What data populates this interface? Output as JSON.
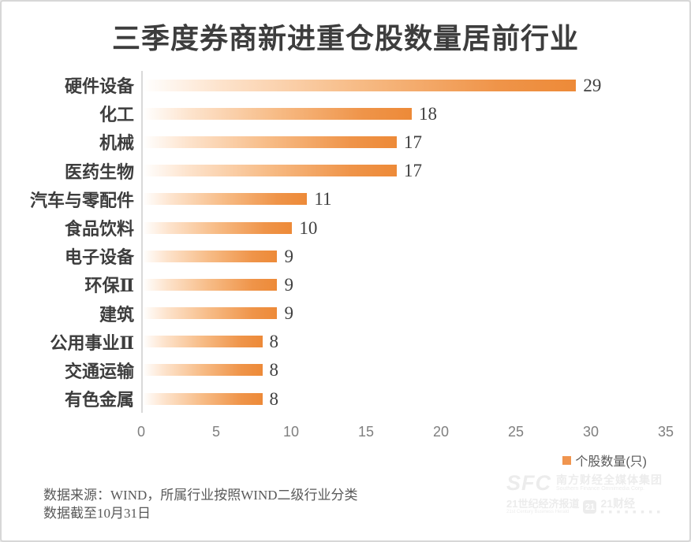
{
  "title": "三季度券商新进重仓股数量居前行业",
  "chart_data": {
    "type": "bar",
    "orientation": "horizontal",
    "title": "三季度券商新进重仓股数量居前行业",
    "categories": [
      "硬件设备",
      "化工",
      "机械",
      "医药生物",
      "汽车与零配件",
      "食品饮料",
      "电子设备",
      "环保Ⅱ",
      "建筑",
      "公用事业Ⅱ",
      "交通运输",
      "有色金属"
    ],
    "values": [
      29,
      18,
      17,
      17,
      11,
      10,
      9,
      9,
      9,
      8,
      8,
      8
    ],
    "series_name": "个股数量(只)",
    "xlim": [
      0,
      35
    ],
    "x_ticks": [
      0,
      5,
      10,
      15,
      20,
      25,
      30,
      35
    ],
    "grid": false,
    "data_labels": true,
    "legend_position": "bottom-right",
    "bar_gradient": [
      "#FFFFFF",
      "#FDE3CC",
      "#F7BB85",
      "#ED8A38"
    ],
    "axis_line_color": "#D9D9D9",
    "label_color": "#3D3D3D",
    "tick_color": "#7F7F7F"
  },
  "legend": {
    "marker_color": "#F0954F",
    "label": "个股数量(只)"
  },
  "footer": {
    "source_line": "数据来源：WIND，所属行业按照WIND二级行业分类",
    "date_line": "数据截至10月31日"
  },
  "watermark": {
    "sfc": "SFC",
    "group_cn": "南方财经全媒体集团",
    "group_en": "Southern Finance Omnimedia Corp.",
    "herald_cn": "21世纪经济报道",
    "herald_en": "21st Century Business Herald",
    "badge": "21",
    "app_cn": "21财经",
    "app_squares": "■ ■ ■ ■ ■ ■ ■ ■"
  }
}
